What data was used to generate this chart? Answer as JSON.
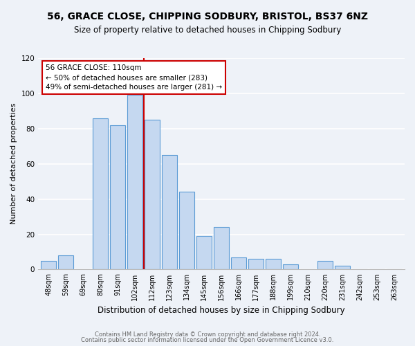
{
  "title": "56, GRACE CLOSE, CHIPPING SODBURY, BRISTOL, BS37 6NZ",
  "subtitle": "Size of property relative to detached houses in Chipping Sodbury",
  "xlabel": "Distribution of detached houses by size in Chipping Sodbury",
  "ylabel": "Number of detached properties",
  "bin_labels": [
    "48sqm",
    "59sqm",
    "69sqm",
    "80sqm",
    "91sqm",
    "102sqm",
    "112sqm",
    "123sqm",
    "134sqm",
    "145sqm",
    "156sqm",
    "166sqm",
    "177sqm",
    "188sqm",
    "199sqm",
    "210sqm",
    "220sqm",
    "231sqm",
    "242sqm",
    "253sqm",
    "263sqm"
  ],
  "bar_values": [
    5,
    8,
    0,
    86,
    82,
    99,
    85,
    65,
    44,
    19,
    24,
    7,
    6,
    6,
    3,
    0,
    5,
    2,
    0,
    0,
    0
  ],
  "bar_color": "#c5d8f0",
  "bar_edge_color": "#5b9bd5",
  "vline_x_index": 5.5,
  "vline_color": "#cc0000",
  "annotation_line1": "56 GRACE CLOSE: 110sqm",
  "annotation_line2": "← 50% of detached houses are smaller (283)",
  "annotation_line3": "49% of semi-detached houses are larger (281) →",
  "annotation_box_edge_color": "#cc0000",
  "ylim": [
    0,
    120
  ],
  "yticks": [
    0,
    20,
    40,
    60,
    80,
    100,
    120
  ],
  "footer_line1": "Contains HM Land Registry data © Crown copyright and database right 2024.",
  "footer_line2": "Contains public sector information licensed under the Open Government Licence v3.0.",
  "bg_color": "#eef2f8",
  "grid_color": "#ffffff",
  "title_fontsize": 10,
  "subtitle_fontsize": 8.5,
  "axis_label_fontsize": 8,
  "tick_fontsize": 7,
  "footer_fontsize": 6
}
